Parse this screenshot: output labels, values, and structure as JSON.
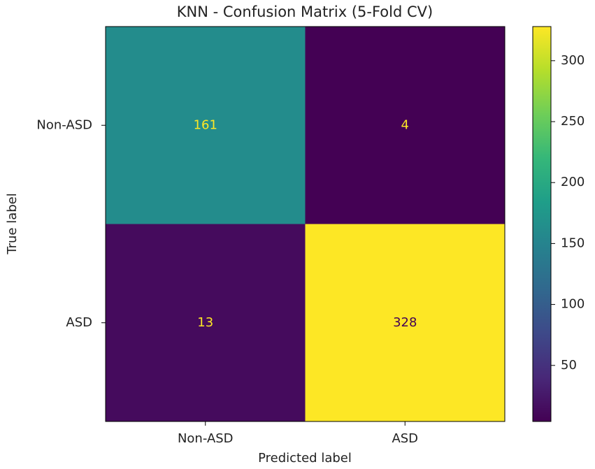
{
  "chart_data": {
    "type": "heatmap",
    "title": "KNN - Confusion Matrix (5-Fold CV)",
    "xlabel": "Predicted label",
    "ylabel": "True label",
    "x_categories": [
      "Non-ASD",
      "ASD"
    ],
    "y_categories": [
      "Non-ASD",
      "ASD"
    ],
    "values": [
      [
        161,
        4
      ],
      [
        13,
        328
      ]
    ],
    "colormap": "viridis",
    "clim": [
      4,
      328
    ],
    "cticks": [
      50,
      100,
      150,
      200,
      250,
      300
    ]
  }
}
